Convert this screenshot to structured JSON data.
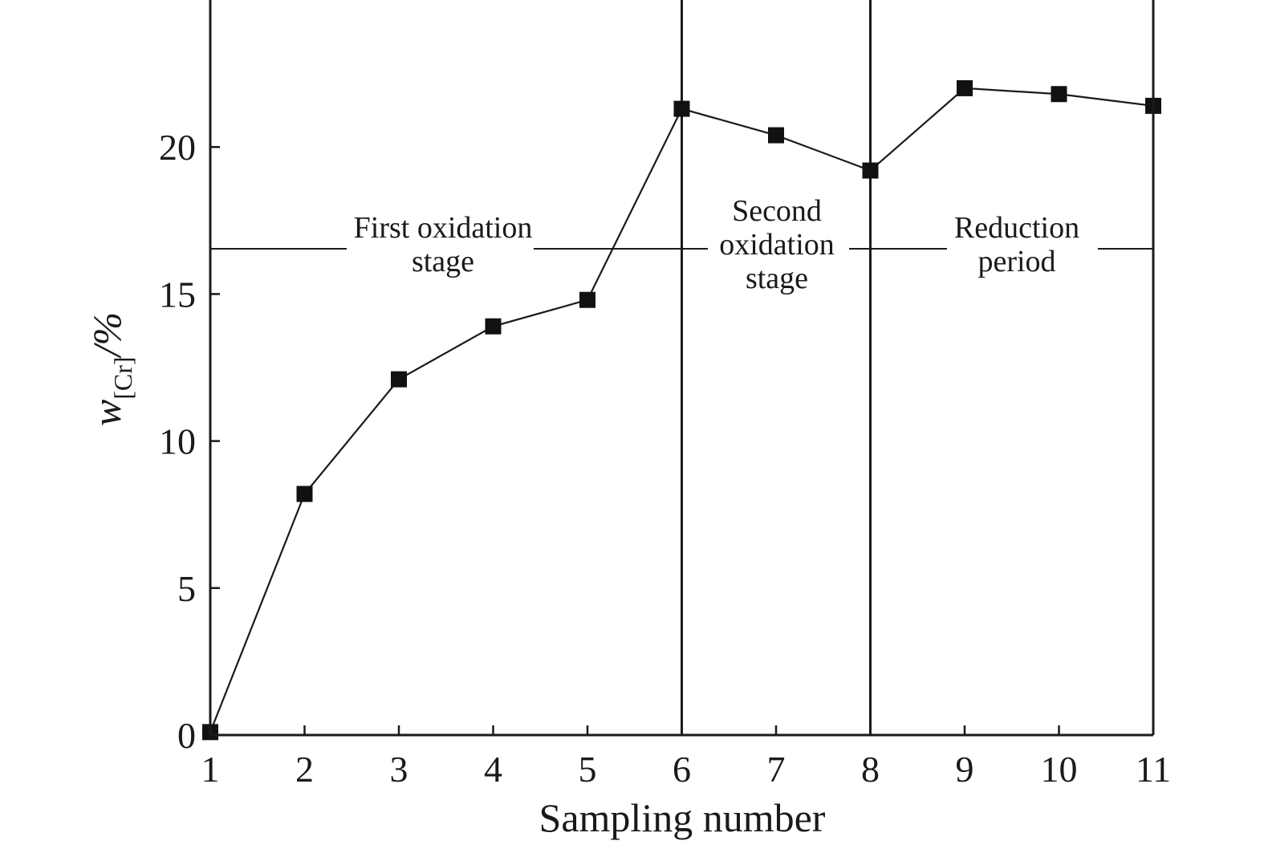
{
  "chart_data": {
    "type": "line",
    "xlabel": "Sampling number",
    "ylabel": {
      "symbol": "w",
      "subscript": "[Cr]",
      "unit": "/%"
    },
    "xlim": [
      1,
      11
    ],
    "ylim": [
      0,
      25
    ],
    "xticks": [
      1,
      2,
      3,
      4,
      5,
      6,
      7,
      8,
      9,
      10,
      11
    ],
    "yticks": [
      0,
      5,
      10,
      15,
      20
    ],
    "grid": false,
    "legend": "none",
    "marker": "square",
    "colors": {
      "line": "#1a1a1a",
      "marker": "#111111",
      "frame": "#1a1a1a"
    },
    "series": [
      {
        "x": [
          1,
          2,
          3,
          4,
          5,
          6,
          7,
          8,
          9,
          10,
          11
        ],
        "y": [
          0.1,
          8.2,
          12.1,
          13.9,
          14.8,
          21.3,
          20.4,
          19.2,
          22.0,
          21.8,
          21.4
        ]
      }
    ],
    "stage_boundaries": [
      6,
      8
    ],
    "stages": [
      {
        "lines": [
          "First oxidation",
          "stage"
        ]
      },
      {
        "lines": [
          "Second",
          "oxidation",
          "stage"
        ]
      },
      {
        "lines": [
          "Reduction",
          "period"
        ]
      }
    ]
  }
}
